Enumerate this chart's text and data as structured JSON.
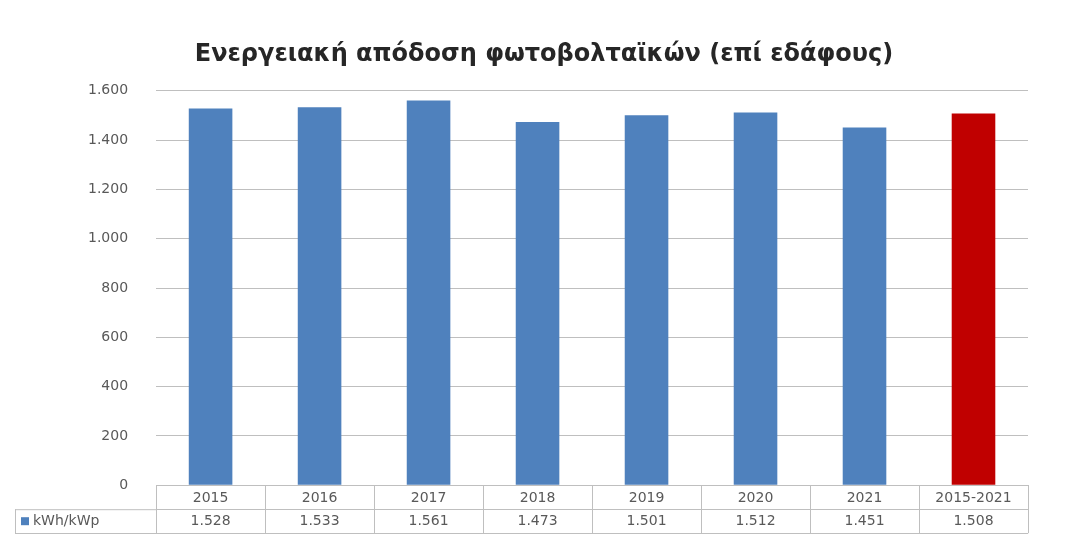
{
  "chart_data": {
    "type": "bar",
    "title": "Ενεργειακή απόδοση φωτοβολταϊκών (επί εδάφους)",
    "categories": [
      "2015",
      "2016",
      "2017",
      "2018",
      "2019",
      "2020",
      "2021",
      "2015-2021"
    ],
    "series": [
      {
        "name": "kWh/kWp",
        "color": "#4f81bd",
        "colors": [
          "#4f81bd",
          "#4f81bd",
          "#4f81bd",
          "#4f81bd",
          "#4f81bd",
          "#4f81bd",
          "#4f81bd",
          "#c00000"
        ],
        "values": [
          1528,
          1533,
          1561,
          1473,
          1501,
          1512,
          1451,
          1508
        ],
        "value_labels": [
          "1.528",
          "1.533",
          "1.561",
          "1.473",
          "1.501",
          "1.512",
          "1.451",
          "1.508"
        ]
      }
    ],
    "ylim": [
      0,
      1600
    ],
    "yticks": [
      {
        "value": 0,
        "label": "0"
      },
      {
        "value": 200,
        "label": "200"
      },
      {
        "value": 400,
        "label": "400"
      },
      {
        "value": 600,
        "label": "600"
      },
      {
        "value": 800,
        "label": "800"
      },
      {
        "value": 1000,
        "label": "1.000"
      },
      {
        "value": 1200,
        "label": "1.200"
      },
      {
        "value": 1400,
        "label": "1.400"
      },
      {
        "value": 1600,
        "label": "1.600"
      }
    ],
    "grid": "y",
    "legend": "bottom left"
  }
}
